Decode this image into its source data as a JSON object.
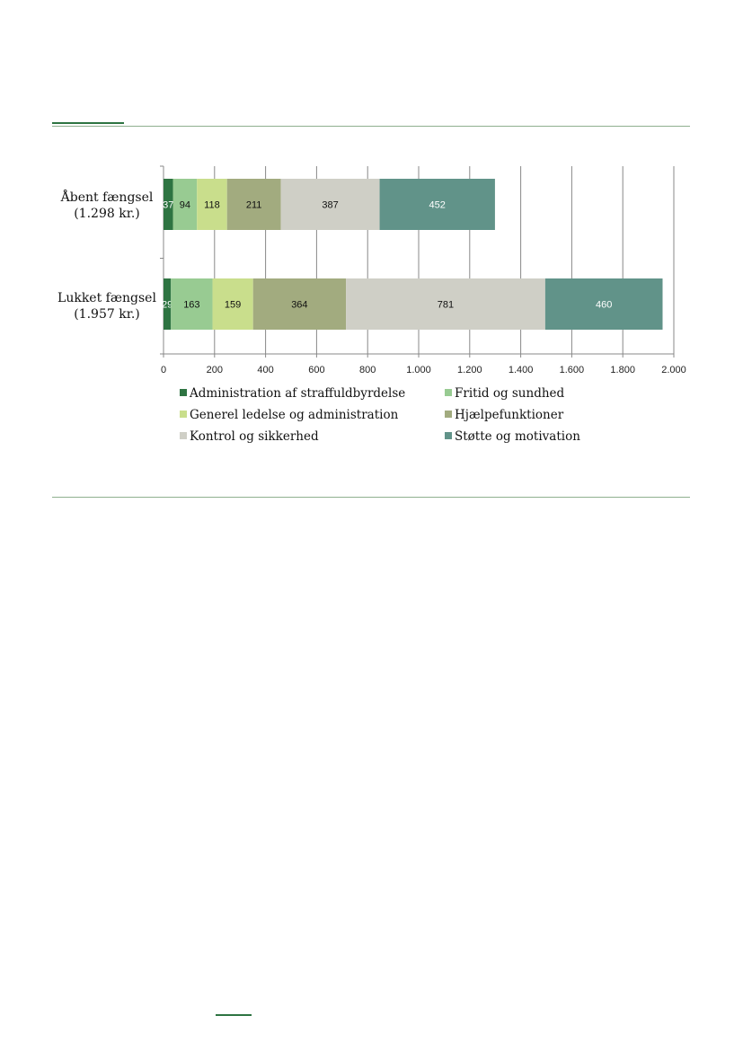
{
  "chart_data": {
    "type": "bar",
    "orientation": "horizontal",
    "stacked": true,
    "categories": [
      "Åbent fængsel\n(1.298 kr.)",
      "Lukket fængsel\n(1.957 kr.)"
    ],
    "series": [
      {
        "name": "Administration af straffuldbyrdelse",
        "values": [
          37,
          29
        ],
        "color": "#2e7442"
      },
      {
        "name": "Fritid og sundhed",
        "values": [
          94,
          163
        ],
        "color": "#98cb92"
      },
      {
        "name": "Generel ledelse og administration",
        "values": [
          118,
          159
        ],
        "color": "#c9de8c"
      },
      {
        "name": "Hjælpefunktioner",
        "values": [
          211,
          364
        ],
        "color": "#a2ab7f"
      },
      {
        "name": "Kontrol og sikkerhed",
        "values": [
          387,
          781
        ],
        "color": "#cfcfc6"
      },
      {
        "name": "Støtte og motivation",
        "values": [
          452,
          460
        ],
        "color": "#619389"
      }
    ],
    "xlim": [
      0,
      2000
    ],
    "xticks": [
      0,
      200,
      400,
      600,
      800,
      1000,
      1200,
      1400,
      1600,
      1800,
      2000
    ],
    "xtick_labels": [
      "0",
      "200",
      "400",
      "600",
      "800",
      "1.000",
      "1.200",
      "1.400",
      "1.600",
      "1.800",
      "2.000"
    ],
    "grid": true,
    "legend_position": "bottom",
    "title": "",
    "xlabel": "",
    "ylabel": ""
  },
  "colors": {
    "rule": "#8fb08f",
    "grid": "#888888"
  }
}
